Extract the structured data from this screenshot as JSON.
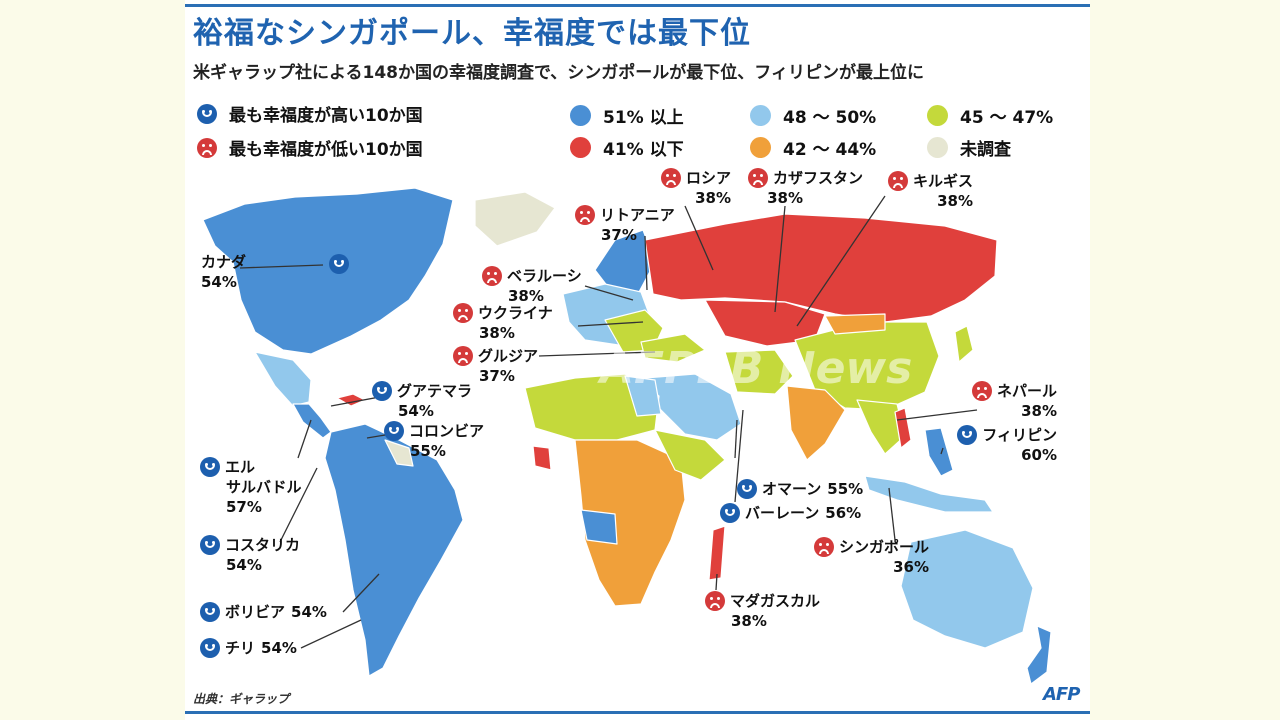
{
  "title": "裕福なシンガポール、幸福度では最下位",
  "subtitle": "米ギャラップ社による148か国の幸福度調査で、シンガポールが最下位、フィリピンが最上位に",
  "legend": {
    "happy_label": "最も幸福度が高い10か国",
    "sad_label": "最も幸福度が低い10か国",
    "bins": [
      {
        "label": "51% 以上",
        "color": "#4a8fd4"
      },
      {
        "label": "48 ～ 50%",
        "color": "#92c8ec"
      },
      {
        "label": "45 ～ 47%",
        "color": "#c4d93b"
      },
      {
        "label": "41% 以下",
        "color": "#e0403c"
      },
      {
        "label": "42 ～ 44%",
        "color": "#f0a03a"
      },
      {
        "label": "未調査",
        "color": "#e6e6d2"
      }
    ]
  },
  "icons": {
    "happy": "smiley-face-icon",
    "sad": "frowny-face-icon"
  },
  "annotations": [
    {
      "country": "ロシア",
      "value": "38%",
      "mood": "sad"
    },
    {
      "country": "カザフスタン",
      "value": "38%",
      "mood": "sad"
    },
    {
      "country": "キルギス",
      "value": "38%",
      "mood": "sad"
    },
    {
      "country": "リトアニア",
      "value": "37%",
      "mood": "sad"
    },
    {
      "country": "ベラルーシ",
      "value": "38%",
      "mood": "sad"
    },
    {
      "country": "ウクライナ",
      "value": "38%",
      "mood": "sad"
    },
    {
      "country": "グルジア",
      "value": "37%",
      "mood": "sad"
    },
    {
      "country": "ネパール",
      "value": "38%",
      "mood": "sad"
    },
    {
      "country": "シンガポール",
      "value": "36%",
      "mood": "sad"
    },
    {
      "country": "マダガスカル",
      "value": "38%",
      "mood": "sad"
    },
    {
      "country": "カナダ",
      "value": "54%",
      "mood": "happy"
    },
    {
      "country": "グアテマラ",
      "value": "54%",
      "mood": "happy"
    },
    {
      "country": "コロンビア",
      "value": "55%",
      "mood": "happy"
    },
    {
      "country": "エル",
      "country2": "サルバドル",
      "value": "57%",
      "mood": "happy"
    },
    {
      "country": "コスタリカ",
      "value": "54%",
      "mood": "happy"
    },
    {
      "country": "ボリビア",
      "value": "54%",
      "mood": "happy"
    },
    {
      "country": "チリ",
      "value": "54%",
      "mood": "happy"
    },
    {
      "country": "フィリピン",
      "value": "60%",
      "mood": "happy"
    },
    {
      "country": "オマーン",
      "value": "55%",
      "mood": "happy"
    },
    {
      "country": "バーレーン",
      "value": "56%",
      "mood": "happy"
    }
  ],
  "source": "出典：ギャラップ",
  "credit": "AFP",
  "watermark": "AFPBB News"
}
